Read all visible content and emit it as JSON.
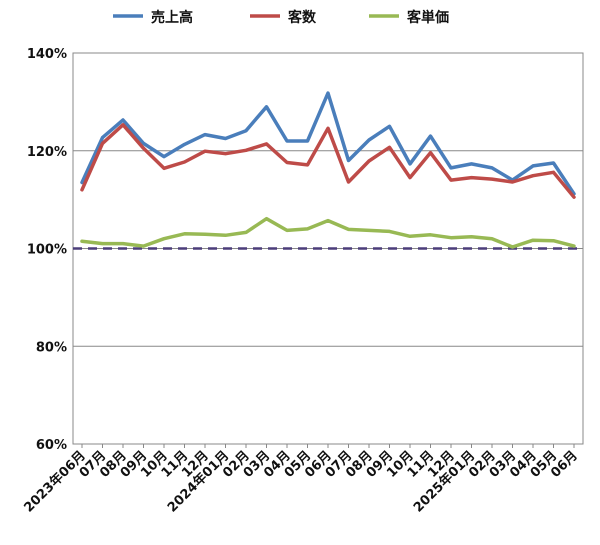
{
  "chart_data": {
    "type": "line",
    "title": "",
    "xlabel": "",
    "ylabel": "",
    "ylim": [
      60,
      140
    ],
    "yticks": [
      60,
      80,
      100,
      120,
      140
    ],
    "ytick_labels": [
      "60%",
      "80%",
      "100%",
      "120%",
      "140%"
    ],
    "grid": true,
    "legend_position": "top",
    "baseline": {
      "value": 100,
      "style": "dashed",
      "color": "#4b3d7a"
    },
    "categories": [
      "2023年06月",
      "07月",
      "08月",
      "09月",
      "10月",
      "11月",
      "12月",
      "2024年01月",
      "02月",
      "03月",
      "04月",
      "05月",
      "06月",
      "07月",
      "08月",
      "09月",
      "10月",
      "11月",
      "12月",
      "2025年01月",
      "02月",
      "03月",
      "04月",
      "05月",
      "06月"
    ],
    "series": [
      {
        "name": "売上高",
        "color": "#4a7ebb",
        "values": [
          113.5,
          122.7,
          126.3,
          121.5,
          118.8,
          121.3,
          123.3,
          122.5,
          124.1,
          129.0,
          122.0,
          122.0,
          131.8,
          118.0,
          122.2,
          125.0,
          117.3,
          123.0,
          116.5,
          117.3,
          116.5,
          114.0,
          116.9,
          117.5,
          111.2
        ]
      },
      {
        "name": "客数",
        "color": "#be4b48",
        "values": [
          112.0,
          121.5,
          125.3,
          120.5,
          116.4,
          117.7,
          119.9,
          119.4,
          120.1,
          121.4,
          117.6,
          117.1,
          124.6,
          113.6,
          117.9,
          120.7,
          114.5,
          119.6,
          114.0,
          114.5,
          114.2,
          113.6,
          114.9,
          115.6,
          110.5
        ]
      },
      {
        "name": "客単価",
        "color": "#98b954",
        "values": [
          101.5,
          101.0,
          101.0,
          100.5,
          102.0,
          103.0,
          102.9,
          102.7,
          103.3,
          106.1,
          103.7,
          104.0,
          105.7,
          103.9,
          103.7,
          103.5,
          102.5,
          102.8,
          102.2,
          102.4,
          102.0,
          100.3,
          101.7,
          101.6,
          100.5
        ]
      }
    ]
  }
}
